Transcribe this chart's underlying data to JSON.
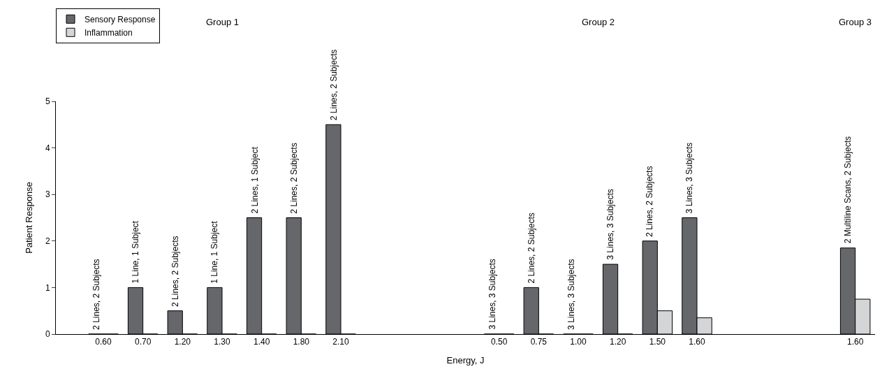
{
  "chart_data": {
    "type": "bar",
    "xlabel": "Energy, J",
    "ylabel": "Patient Response",
    "categories": [
      "0.60",
      "0.70",
      "1.20",
      "1.30",
      "1.40",
      "1.80",
      "2.10",
      null,
      null,
      null,
      "0.50",
      "0.75",
      "1.00",
      "1.20",
      "1.50",
      "1.60",
      null,
      null,
      null,
      "1.60"
    ],
    "series": [
      {
        "name": "Sensory Response",
        "color": "#66676b",
        "values": [
          0,
          1,
          0.5,
          1,
          2.5,
          2.5,
          4.5,
          null,
          null,
          null,
          0,
          1,
          0,
          1.5,
          2,
          2.5,
          null,
          null,
          null,
          1.85
        ]
      },
      {
        "name": "Inflammation",
        "color": "#d4d5d7",
        "values": [
          0,
          0,
          0,
          0,
          0,
          0,
          0,
          null,
          null,
          null,
          0,
          0,
          0,
          0,
          0.5,
          0.35,
          null,
          null,
          null,
          0.75
        ]
      }
    ],
    "annotations": [
      "Group 1",
      "Group 2",
      "Group 3",
      "2 Lines, 2 Subjects",
      "1 Line, 1 Subject",
      "2 Lines, 2 Subjects",
      "1 Line, 1 Subject",
      "2 Lines, 1 Subject",
      "2 Lines, 2 Subjects",
      "2 Lines, 2 Subjects",
      "3 Lines, 3 Subjects",
      "2 Lines, 2 Subjects",
      "3 Lines, 3 Subjects",
      "3 Lines, 3 Subjects",
      "2 Lines, 2 Subjects",
      "3 Lines, 3 Subjects",
      "2 Multiline Scans, 2 Subjects"
    ],
    "ylim": [
      0,
      5
    ],
    "yticks": [
      0,
      1,
      2,
      3,
      4,
      5
    ],
    "legend": "top left"
  }
}
